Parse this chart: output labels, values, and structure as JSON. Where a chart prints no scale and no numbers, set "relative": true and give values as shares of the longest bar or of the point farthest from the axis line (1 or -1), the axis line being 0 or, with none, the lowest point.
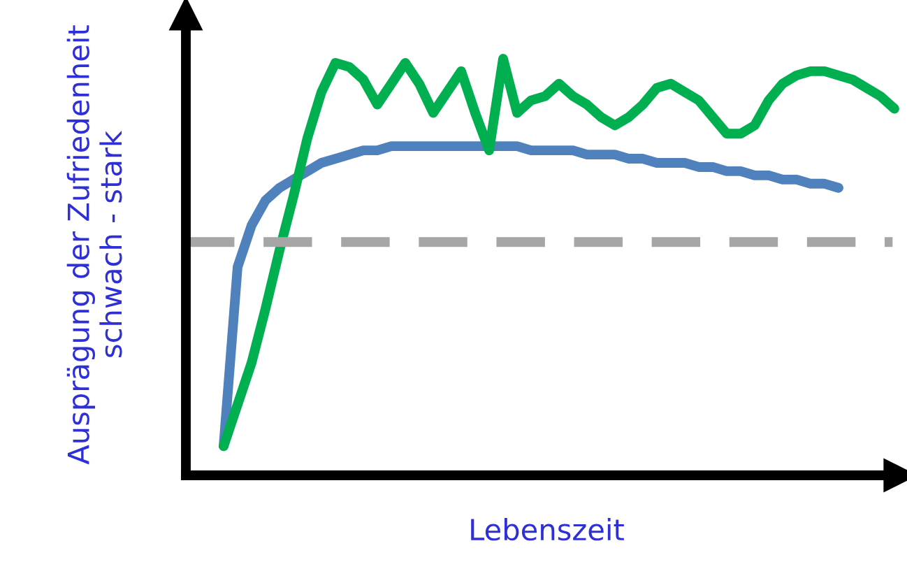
{
  "chart_data": {
    "type": "line",
    "relative": true,
    "xlabel": "Lebenszeit",
    "ylabel": "Ausprägung der Zufriedenheit\nschwach - stark",
    "categories": [
      null,
      null,
      null,
      null,
      null,
      null,
      null,
      null,
      null,
      null,
      null,
      null,
      null,
      null,
      null,
      null,
      null,
      null,
      null,
      null,
      null,
      null,
      null,
      null,
      null,
      null,
      null,
      null,
      null,
      null,
      null,
      null,
      null,
      null,
      null,
      null,
      null,
      null,
      null,
      null,
      null,
      null,
      null,
      null,
      null,
      null,
      null,
      null,
      null,
      null
    ],
    "series": [
      {
        "color": "#4f81bd",
        "values": [
          null,
          0.07,
          0.5,
          0.6,
          0.66,
          0.69,
          0.71,
          0.73,
          0.75,
          0.76,
          0.77,
          0.78,
          0.78,
          0.79,
          0.79,
          0.79,
          0.79,
          0.79,
          0.79,
          0.79,
          0.79,
          0.79,
          0.79,
          0.78,
          0.78,
          0.78,
          0.78,
          0.77,
          0.77,
          0.77,
          0.76,
          0.76,
          0.75,
          0.75,
          0.75,
          0.74,
          0.74,
          0.73,
          0.73,
          0.72,
          0.72,
          0.71,
          0.71,
          0.7,
          0.7,
          0.69,
          null,
          null,
          null,
          null
        ]
      },
      {
        "color": "#00b050",
        "values": [
          null,
          0.07,
          0.17,
          0.27,
          0.4,
          0.54,
          0.67,
          0.81,
          0.92,
          0.99,
          0.98,
          0.95,
          0.89,
          0.94,
          0.99,
          0.94,
          0.87,
          0.92,
          0.97,
          0.87,
          0.78,
          1.0,
          0.87,
          0.9,
          0.91,
          0.94,
          0.91,
          0.89,
          0.86,
          0.84,
          0.86,
          0.89,
          0.93,
          0.94,
          0.92,
          0.9,
          0.86,
          0.82,
          0.82,
          0.84,
          0.9,
          0.94,
          0.96,
          0.97,
          0.97,
          0.96,
          0.95,
          0.93,
          0.91,
          0.88
        ]
      }
    ],
    "ref_lines": [
      {
        "axis": "y",
        "value": 0.56,
        "color": "#a6a6a6",
        "line_style": "dashed"
      }
    ],
    "grid": false,
    "tick_labels": false
  }
}
